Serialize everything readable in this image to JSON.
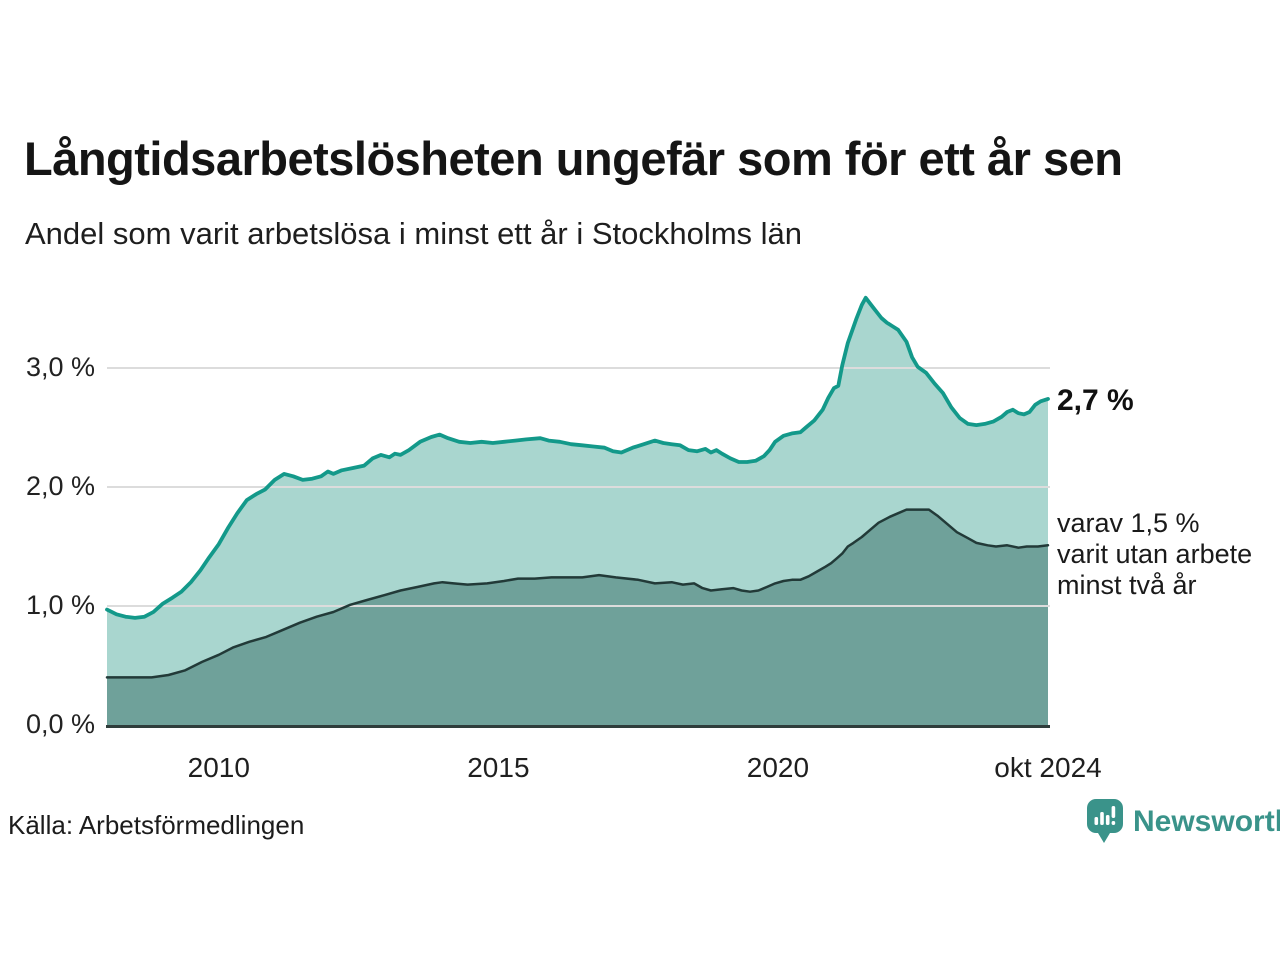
{
  "header": {
    "title": "Långtidsarbetslösheten ungefär som för ett år sen",
    "subtitle": "Andel som varit arbetslösa i minst ett år i Stockholms län"
  },
  "axes": {
    "y_ticks": [
      "3,0 %",
      "2,0 %",
      "1,0 %",
      "0,0 %"
    ],
    "x_ticks": [
      "2010",
      "2015",
      "2020",
      "okt 2024"
    ]
  },
  "annotations": {
    "total_latest": "2,7 %",
    "secondary_lines": [
      "varav 1,5 %",
      "varit utan arbete",
      "minst två år"
    ]
  },
  "footer": {
    "source": "Källa: Arbetsförmedlingen",
    "brand": "Newsworthy"
  },
  "colors": {
    "line_total": "#13998a",
    "fill_total": "#a9d6cf",
    "line_two_years": "#223a38",
    "fill_two_years": "#6fa19a",
    "gridline": "#dcdcdc",
    "axis": "#2f3d3b",
    "brand_teal": "#3a938a"
  },
  "chart_data": {
    "type": "area",
    "title": "Långtidsarbetslösheten ungefär som för ett år sen",
    "subtitle": "Andel som varit arbetslösa i minst ett år i Stockholms län",
    "unit": "%",
    "x_range": [
      2008.0,
      2024.83
    ],
    "ylim": [
      0,
      3.7
    ],
    "y_gridline_values": [
      1.0,
      2.0,
      3.0
    ],
    "y_tick_values": [
      3.0,
      2.0,
      1.0,
      0.0
    ],
    "x_tick_positions": [
      2010.0,
      2015.0,
      2020.0,
      2024.83
    ],
    "grid": true,
    "legend_position": "right-annotations",
    "series": [
      {
        "name": "Arbetslösa minst ett år",
        "latest_value": 2.7,
        "latest_label": "2,7 %",
        "points": [
          [
            2008.0,
            0.97
          ],
          [
            2008.17,
            0.93
          ],
          [
            2008.33,
            0.91
          ],
          [
            2008.5,
            0.9
          ],
          [
            2008.67,
            0.91
          ],
          [
            2008.83,
            0.95
          ],
          [
            2009.0,
            1.02
          ],
          [
            2009.17,
            1.07
          ],
          [
            2009.33,
            1.12
          ],
          [
            2009.5,
            1.2
          ],
          [
            2009.67,
            1.3
          ],
          [
            2009.83,
            1.41
          ],
          [
            2010.0,
            1.52
          ],
          [
            2010.17,
            1.66
          ],
          [
            2010.33,
            1.78
          ],
          [
            2010.5,
            1.89
          ],
          [
            2010.67,
            1.94
          ],
          [
            2010.83,
            1.98
          ],
          [
            2011.0,
            2.06
          ],
          [
            2011.17,
            2.11
          ],
          [
            2011.33,
            2.09
          ],
          [
            2011.5,
            2.06
          ],
          [
            2011.67,
            2.07
          ],
          [
            2011.83,
            2.09
          ],
          [
            2011.95,
            2.13
          ],
          [
            2012.05,
            2.11
          ],
          [
            2012.2,
            2.14
          ],
          [
            2012.4,
            2.16
          ],
          [
            2012.6,
            2.18
          ],
          [
            2012.75,
            2.24
          ],
          [
            2012.9,
            2.27
          ],
          [
            2013.05,
            2.25
          ],
          [
            2013.15,
            2.28
          ],
          [
            2013.25,
            2.27
          ],
          [
            2013.4,
            2.31
          ],
          [
            2013.6,
            2.38
          ],
          [
            2013.8,
            2.42
          ],
          [
            2013.95,
            2.44
          ],
          [
            2014.1,
            2.41
          ],
          [
            2014.3,
            2.38
          ],
          [
            2014.5,
            2.37
          ],
          [
            2014.7,
            2.38
          ],
          [
            2014.9,
            2.37
          ],
          [
            2015.1,
            2.38
          ],
          [
            2015.3,
            2.39
          ],
          [
            2015.5,
            2.4
          ],
          [
            2015.75,
            2.41
          ],
          [
            2015.9,
            2.39
          ],
          [
            2016.1,
            2.38
          ],
          [
            2016.3,
            2.36
          ],
          [
            2016.5,
            2.35
          ],
          [
            2016.7,
            2.34
          ],
          [
            2016.9,
            2.33
          ],
          [
            2017.05,
            2.3
          ],
          [
            2017.2,
            2.29
          ],
          [
            2017.4,
            2.33
          ],
          [
            2017.6,
            2.36
          ],
          [
            2017.8,
            2.39
          ],
          [
            2017.95,
            2.37
          ],
          [
            2018.1,
            2.36
          ],
          [
            2018.25,
            2.35
          ],
          [
            2018.4,
            2.31
          ],
          [
            2018.55,
            2.3
          ],
          [
            2018.7,
            2.32
          ],
          [
            2018.8,
            2.29
          ],
          [
            2018.9,
            2.31
          ],
          [
            2019.0,
            2.28
          ],
          [
            2019.15,
            2.24
          ],
          [
            2019.3,
            2.21
          ],
          [
            2019.45,
            2.21
          ],
          [
            2019.6,
            2.22
          ],
          [
            2019.75,
            2.26
          ],
          [
            2019.85,
            2.31
          ],
          [
            2019.95,
            2.38
          ],
          [
            2020.1,
            2.43
          ],
          [
            2020.25,
            2.45
          ],
          [
            2020.4,
            2.46
          ],
          [
            2020.5,
            2.5
          ],
          [
            2020.65,
            2.56
          ],
          [
            2020.8,
            2.65
          ],
          [
            2020.9,
            2.75
          ],
          [
            2021.0,
            2.83
          ],
          [
            2021.08,
            2.85
          ],
          [
            2021.15,
            3.02
          ],
          [
            2021.25,
            3.21
          ],
          [
            2021.4,
            3.41
          ],
          [
            2021.5,
            3.53
          ],
          [
            2021.57,
            3.59
          ],
          [
            2021.7,
            3.51
          ],
          [
            2021.85,
            3.42
          ],
          [
            2021.95,
            3.38
          ],
          [
            2022.05,
            3.35
          ],
          [
            2022.15,
            3.32
          ],
          [
            2022.3,
            3.22
          ],
          [
            2022.4,
            3.09
          ],
          [
            2022.5,
            3.01
          ],
          [
            2022.65,
            2.96
          ],
          [
            2022.8,
            2.87
          ],
          [
            2022.95,
            2.79
          ],
          [
            2023.1,
            2.67
          ],
          [
            2023.25,
            2.58
          ],
          [
            2023.4,
            2.53
          ],
          [
            2023.55,
            2.52
          ],
          [
            2023.7,
            2.53
          ],
          [
            2023.85,
            2.55
          ],
          [
            2024.0,
            2.59
          ],
          [
            2024.1,
            2.63
          ],
          [
            2024.2,
            2.65
          ],
          [
            2024.3,
            2.62
          ],
          [
            2024.4,
            2.61
          ],
          [
            2024.5,
            2.63
          ],
          [
            2024.6,
            2.69
          ],
          [
            2024.7,
            2.72
          ],
          [
            2024.83,
            2.74
          ]
        ]
      },
      {
        "name": "varav utan arbete minst två år",
        "latest_value": 1.5,
        "latest_label": "varav 1,5 % varit utan arbete minst två år",
        "points": [
          [
            2008.0,
            0.4
          ],
          [
            2008.25,
            0.4
          ],
          [
            2008.5,
            0.4
          ],
          [
            2008.8,
            0.4
          ],
          [
            2009.1,
            0.42
          ],
          [
            2009.4,
            0.46
          ],
          [
            2009.7,
            0.53
          ],
          [
            2010.0,
            0.59
          ],
          [
            2010.25,
            0.65
          ],
          [
            2010.55,
            0.7
          ],
          [
            2010.85,
            0.74
          ],
          [
            2011.15,
            0.8
          ],
          [
            2011.45,
            0.86
          ],
          [
            2011.75,
            0.91
          ],
          [
            2012.05,
            0.95
          ],
          [
            2012.35,
            1.01
          ],
          [
            2012.65,
            1.05
          ],
          [
            2012.95,
            1.09
          ],
          [
            2013.25,
            1.13
          ],
          [
            2013.55,
            1.16
          ],
          [
            2013.85,
            1.19
          ],
          [
            2014.0,
            1.2
          ],
          [
            2014.2,
            1.19
          ],
          [
            2014.45,
            1.18
          ],
          [
            2014.8,
            1.19
          ],
          [
            2015.1,
            1.21
          ],
          [
            2015.35,
            1.23
          ],
          [
            2015.65,
            1.23
          ],
          [
            2015.95,
            1.24
          ],
          [
            2016.25,
            1.24
          ],
          [
            2016.5,
            1.24
          ],
          [
            2016.8,
            1.26
          ],
          [
            2017.1,
            1.24
          ],
          [
            2017.5,
            1.22
          ],
          [
            2017.8,
            1.19
          ],
          [
            2018.1,
            1.2
          ],
          [
            2018.3,
            1.18
          ],
          [
            2018.5,
            1.19
          ],
          [
            2018.65,
            1.15
          ],
          [
            2018.8,
            1.13
          ],
          [
            2019.0,
            1.14
          ],
          [
            2019.2,
            1.15
          ],
          [
            2019.35,
            1.13
          ],
          [
            2019.5,
            1.12
          ],
          [
            2019.65,
            1.13
          ],
          [
            2019.8,
            1.16
          ],
          [
            2019.95,
            1.19
          ],
          [
            2020.1,
            1.21
          ],
          [
            2020.25,
            1.22
          ],
          [
            2020.4,
            1.22
          ],
          [
            2020.55,
            1.25
          ],
          [
            2020.7,
            1.29
          ],
          [
            2020.85,
            1.33
          ],
          [
            2020.95,
            1.36
          ],
          [
            2021.05,
            1.4
          ],
          [
            2021.15,
            1.44
          ],
          [
            2021.25,
            1.5
          ],
          [
            2021.35,
            1.53
          ],
          [
            2021.5,
            1.58
          ],
          [
            2021.65,
            1.64
          ],
          [
            2021.8,
            1.7
          ],
          [
            2022.0,
            1.75
          ],
          [
            2022.15,
            1.78
          ],
          [
            2022.3,
            1.81
          ],
          [
            2022.5,
            1.81
          ],
          [
            2022.7,
            1.81
          ],
          [
            2022.85,
            1.76
          ],
          [
            2023.0,
            1.7
          ],
          [
            2023.2,
            1.62
          ],
          [
            2023.4,
            1.57
          ],
          [
            2023.55,
            1.53
          ],
          [
            2023.75,
            1.51
          ],
          [
            2023.9,
            1.5
          ],
          [
            2024.1,
            1.51
          ],
          [
            2024.3,
            1.49
          ],
          [
            2024.45,
            1.5
          ],
          [
            2024.65,
            1.5
          ],
          [
            2024.83,
            1.51
          ]
        ]
      }
    ],
    "source": "Källa: Arbetsförmedlingen"
  }
}
